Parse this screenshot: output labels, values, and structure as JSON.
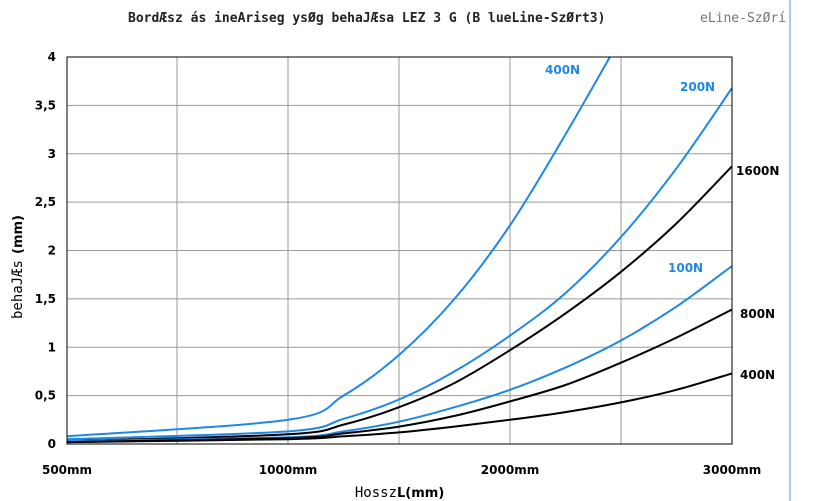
{
  "chart_data": {
    "type": "line",
    "title": "BordÆsz ás ineAriseg ysØg behaJÆsa LEZ 3 G (B lueLine-SzØrt3)",
    "title_overlay": "eLine-SzØrí",
    "ylabel": "behaJÆs",
    "ylabel_unit": "(mm)",
    "xlabel": "Hossz",
    "xlabel_unit": "L(mm)",
    "x_ticks": [
      "500mm",
      "1000mm",
      "2000mm",
      "3000mm"
    ],
    "y_ticks": [
      "0",
      "0,5",
      "1",
      "1,5",
      "2",
      "2,5",
      "3",
      "3,5",
      "4"
    ],
    "xlim": [
      500,
      3000
    ],
    "ylim": [
      0,
      4
    ],
    "grid": true,
    "series": [
      {
        "name": "400N",
        "color": "#1e88e5",
        "x": [
          500,
          1000,
          1250,
          1500,
          1750,
          2000,
          2250,
          2450
        ],
        "y": [
          0.08,
          0.25,
          0.5,
          0.92,
          1.5,
          2.26,
          3.2,
          4.0
        ]
      },
      {
        "name": "200N",
        "color": "#1e88e5",
        "x": [
          500,
          1000,
          1250,
          1500,
          1750,
          2000,
          2250,
          2500,
          2750,
          3000
        ],
        "y": [
          0.05,
          0.13,
          0.26,
          0.46,
          0.75,
          1.12,
          1.56,
          2.14,
          2.85,
          3.68
        ]
      },
      {
        "name": "1600N",
        "color": "#000000",
        "x": [
          500,
          1000,
          1250,
          1500,
          1750,
          2000,
          2250,
          2500,
          2750,
          3000
        ],
        "y": [
          0.03,
          0.1,
          0.2,
          0.38,
          0.63,
          0.97,
          1.35,
          1.78,
          2.28,
          2.87
        ]
      },
      {
        "name": "100N",
        "color": "#1e88e5",
        "x": [
          500,
          1000,
          1250,
          1500,
          1750,
          2000,
          2250,
          2500,
          2750,
          3000
        ],
        "y": [
          0.03,
          0.07,
          0.13,
          0.23,
          0.38,
          0.56,
          0.79,
          1.07,
          1.42,
          1.84
        ]
      },
      {
        "name": "800N",
        "color": "#000000",
        "x": [
          500,
          1000,
          1250,
          1500,
          1750,
          2000,
          2250,
          2500,
          2750,
          3000
        ],
        "y": [
          0.02,
          0.06,
          0.11,
          0.18,
          0.29,
          0.44,
          0.61,
          0.84,
          1.1,
          1.39
        ]
      },
      {
        "name": "400N",
        "color": "#000000",
        "x": [
          500,
          1000,
          1250,
          1500,
          1750,
          2000,
          2250,
          2500,
          2750,
          3000
        ],
        "y": [
          0.02,
          0.05,
          0.08,
          0.12,
          0.18,
          0.25,
          0.33,
          0.43,
          0.56,
          0.73
        ]
      }
    ]
  }
}
